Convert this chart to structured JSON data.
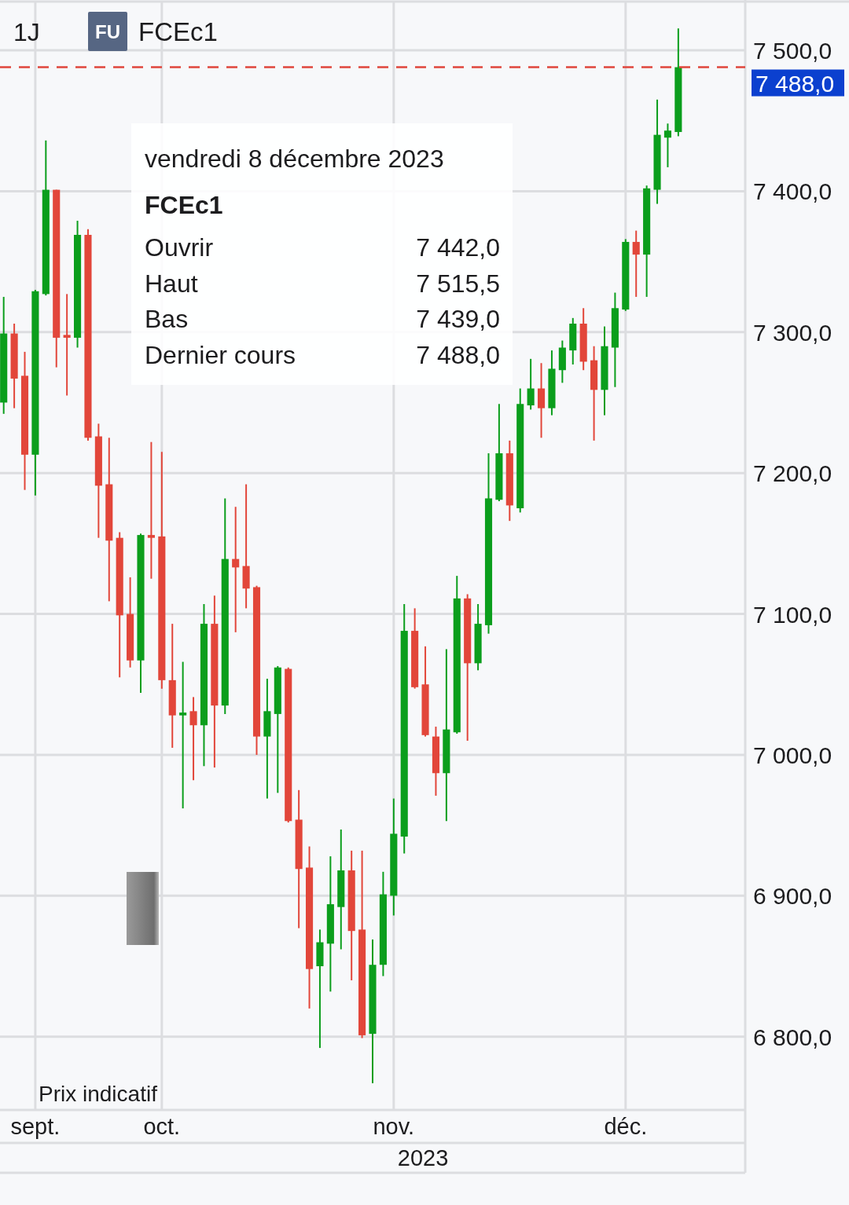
{
  "chart_data": [
    {
      "type": "candlestick",
      "title": "FCEc1",
      "categories": [
        null,
        null,
        null,
        "sept.",
        null,
        null,
        null,
        null,
        null,
        null,
        null,
        null,
        null,
        null,
        null,
        "oct.",
        null,
        null,
        null,
        null,
        null,
        null,
        null,
        null,
        null,
        null,
        null,
        null,
        null,
        null,
        null,
        null,
        null,
        null,
        null,
        null,
        null,
        "nov.",
        null,
        null,
        null,
        null,
        null,
        null,
        null,
        null,
        null,
        null,
        null,
        null,
        null,
        null,
        null,
        null,
        null,
        null,
        null,
        null,
        null,
        "déc.",
        null,
        null,
        null,
        null,
        null,
        null,
        null,
        null,
        null,
        null,
        null
      ],
      "ohlc": [
        [
          7250,
          7325,
          7242,
          7299
        ],
        [
          7299,
          7306,
          7246,
          7267
        ],
        [
          7269,
          7286,
          7188,
          7213
        ],
        [
          7213,
          7330,
          7184,
          7329
        ],
        [
          7327,
          7436,
          7326,
          7401
        ],
        [
          7401,
          7401,
          7275,
          7296
        ],
        [
          7298,
          7327,
          7255,
          7296
        ],
        [
          7296,
          7379,
          7289,
          7369
        ],
        [
          7369,
          7373,
          7223,
          7225
        ],
        [
          7226,
          7235,
          7154,
          7191
        ],
        [
          7192,
          7225,
          7109,
          7152
        ],
        [
          7154,
          7158,
          7055,
          7099
        ],
        [
          7100,
          7126,
          7062,
          7067
        ],
        [
          7067,
          7157,
          7044,
          7156
        ],
        [
          7156,
          7222,
          7125,
          7154
        ],
        [
          7155,
          7215,
          7047,
          7053
        ],
        [
          7053,
          7093,
          7005,
          7028
        ],
        [
          7028,
          7066,
          6962,
          7030
        ],
        [
          7031,
          7041,
          6982,
          7021
        ],
        [
          7021,
          7107,
          6992,
          7093
        ],
        [
          7093,
          7113,
          6991,
          7035
        ],
        [
          7035,
          7182,
          7029,
          7139
        ],
        [
          7139,
          7176,
          7087,
          7133
        ],
        [
          7134,
          7192,
          7104,
          7118
        ],
        [
          7119,
          7120,
          7000,
          7013
        ],
        [
          7013,
          7054,
          6969,
          7031
        ],
        [
          7029,
          7063,
          6973,
          7062
        ],
        [
          7061,
          7062,
          6952,
          6953
        ],
        [
          6954,
          6975,
          6877,
          6919
        ],
        [
          6920,
          6935,
          6820,
          6848
        ],
        [
          6850,
          6876,
          6792,
          6867
        ],
        [
          6866,
          6928,
          6832,
          6894
        ],
        [
          6892,
          6947,
          6862,
          6918
        ],
        [
          6918,
          6932,
          6840,
          6875
        ],
        [
          6876,
          6932,
          6799,
          6801
        ],
        [
          6802,
          6869,
          6767,
          6851
        ],
        [
          6851,
          6917,
          6843,
          6901
        ],
        [
          6900,
          6969,
          6886,
          6944
        ],
        [
          6942,
          7107,
          6930,
          7088
        ],
        [
          7088,
          7104,
          7047,
          7048
        ],
        [
          7050,
          7077,
          7013,
          7014
        ],
        [
          7013,
          7020,
          6971,
          6987
        ],
        [
          6987,
          7075,
          6953,
          7018
        ],
        [
          7016,
          7127,
          7015,
          7111
        ],
        [
          7111,
          7114,
          7010,
          7065
        ],
        [
          7065,
          7107,
          7060,
          7093
        ],
        [
          7092,
          7214,
          7086,
          7182
        ],
        [
          7181,
          7249,
          7180,
          7214
        ],
        [
          7214,
          7223,
          7166,
          7177
        ],
        [
          7175,
          7260,
          7172,
          7249
        ],
        [
          7248,
          7281,
          7245,
          7260
        ],
        [
          7260,
          7278,
          7225,
          7246
        ],
        [
          7246,
          7287,
          7241,
          7274
        ],
        [
          7273,
          7294,
          7264,
          7289
        ],
        [
          7287,
          7310,
          7277,
          7306
        ],
        [
          7306,
          7317,
          7273,
          7279
        ],
        [
          7280,
          7290,
          7223,
          7259
        ],
        [
          7259,
          7304,
          7241,
          7290
        ],
        [
          7289,
          7328,
          7261,
          7317
        ],
        [
          7316,
          7366,
          7315,
          7364
        ],
        [
          7364,
          7372,
          7325,
          7355
        ],
        [
          7355,
          7404,
          7325,
          7402
        ],
        [
          7401,
          7465,
          7391,
          7440
        ],
        [
          7438,
          7448,
          7417,
          7443
        ],
        [
          7442,
          7515.5,
          7439,
          7488
        ],
        null,
        null,
        null,
        null,
        null,
        null
      ],
      "colors": [
        "#0b9e1c",
        "#e2463a",
        "#e2463a",
        "#0b9e1c",
        "#0b9e1c",
        "#e2463a",
        "#e2463a",
        "#0b9e1c",
        "#e2463a",
        "#e2463a",
        "#e2463a",
        "#e2463a",
        "#e2463a",
        "#0b9e1c",
        "#e2463a",
        "#e2463a",
        "#e2463a",
        "#0b9e1c",
        "#e2463a",
        "#0b9e1c",
        "#e2463a",
        "#0b9e1c",
        "#e2463a",
        "#e2463a",
        "#e2463a",
        "#0b9e1c",
        "#0b9e1c",
        "#e2463a",
        "#e2463a",
        "#e2463a",
        "#0b9e1c",
        "#0b9e1c",
        "#0b9e1c",
        "#e2463a",
        "#e2463a",
        "#0b9e1c",
        "#0b9e1c",
        "#0b9e1c",
        "#0b9e1c",
        "#e2463a",
        "#e2463a",
        "#e2463a",
        "#0b9e1c",
        "#0b9e1c",
        "#e2463a",
        "#0b9e1c",
        "#0b9e1c",
        "#0b9e1c",
        "#e2463a",
        "#0b9e1c",
        "#0b9e1c",
        "#e2463a",
        "#0b9e1c",
        "#0b9e1c",
        "#0b9e1c",
        "#e2463a",
        "#e2463a",
        "#0b9e1c",
        "#0b9e1c",
        "#0b9e1c",
        "#e2463a",
        "#0b9e1c",
        "#0b9e1c",
        "#0b9e1c",
        "#0b9e1c",
        null,
        null,
        null,
        null,
        null,
        null
      ],
      "xlabel": "2023",
      "ylim": [
        6748,
        7534
      ],
      "yticks": [
        {
          "value": 6800,
          "label": "6 800,0"
        },
        {
          "value": 6900,
          "label": "6 900,0"
        },
        {
          "value": 7000,
          "label": "7 000,0"
        },
        {
          "value": 7100,
          "label": "7 100,0"
        },
        {
          "value": 7200,
          "label": "7 200,0"
        },
        {
          "value": 7300,
          "label": "7 300,0"
        },
        {
          "value": 7400,
          "label": "7 400,0"
        },
        {
          "value": 7500,
          "label": "7 500,0"
        }
      ],
      "grid": true,
      "ref_lines": [
        {
          "axis": "y",
          "value": 7488,
          "label": "7 488,0",
          "color": "#e0463c",
          "line_style": "dashed"
        }
      ],
      "annotations": [
        "1J",
        "FU",
        "Prix indicatif"
      ]
    },
    {
      "type": "other",
      "title": "vendredi 8 décembre 2023",
      "subtitle": "FCEc1",
      "annotations": [
        "Ouvrir",
        "7 442,0",
        "Haut",
        "7 515,5",
        "Bas",
        "7 439,0",
        "Dernier cours",
        "7 488,0"
      ]
    }
  ]
}
